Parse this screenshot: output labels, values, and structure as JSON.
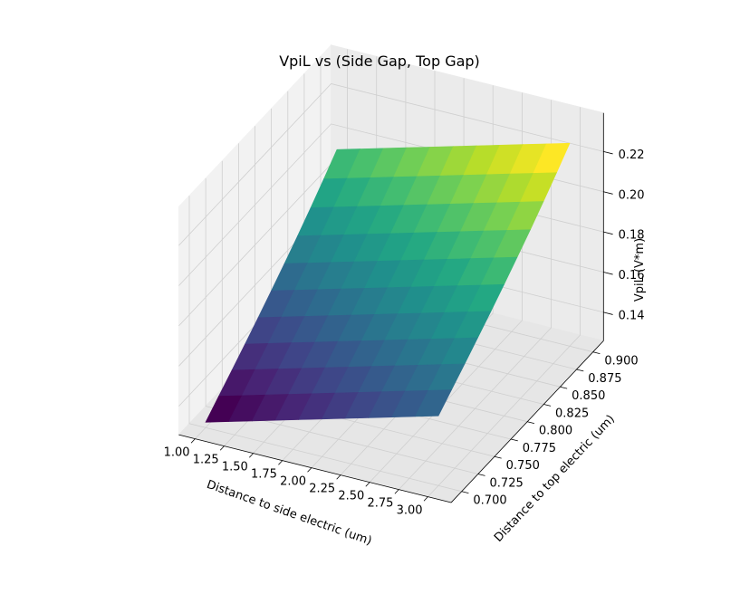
{
  "chart_data": {
    "type": "surface",
    "title": "VpiL vs (Side Gap, Top Gap)",
    "xlabel": "Distance to side electric (um)",
    "ylabel": "Distance to top electric (um)",
    "zlabel": "VpiL (V*m)",
    "x": [
      1.0,
      1.2,
      1.4,
      1.6,
      1.8,
      2.0,
      2.2,
      2.4,
      2.6,
      2.8,
      3.0
    ],
    "y": [
      0.7,
      0.72,
      0.74,
      0.76,
      0.78,
      0.8,
      0.82,
      0.84,
      0.86,
      0.88,
      0.9
    ],
    "z_by_y": [
      0.1285,
      0.1345,
      0.1405,
      0.1466,
      0.1528,
      0.1592,
      0.1658,
      0.1726,
      0.1797,
      0.1871,
      0.1948
    ],
    "z_slope_per_um_x": 0.016,
    "xlim": [
      1.0,
      3.0
    ],
    "ylim": [
      0.7,
      0.9
    ],
    "zlim": [
      0.13,
      0.235
    ],
    "xticks": [
      "1.00",
      "1.25",
      "1.50",
      "1.75",
      "2.00",
      "2.25",
      "2.50",
      "2.75",
      "3.00"
    ],
    "xtick_values": [
      1.0,
      1.25,
      1.5,
      1.75,
      2.0,
      2.25,
      2.5,
      2.75,
      3.0
    ],
    "yticks": [
      "0.700",
      "0.725",
      "0.750",
      "0.775",
      "0.800",
      "0.825",
      "0.850",
      "0.875",
      "0.900"
    ],
    "ytick_values": [
      0.7,
      0.725,
      0.75,
      0.775,
      0.8,
      0.825,
      0.85,
      0.875,
      0.9
    ],
    "zticks": [
      "0.14",
      "0.16",
      "0.18",
      "0.20",
      "0.22"
    ],
    "ztick_values": [
      0.14,
      0.16,
      0.18,
      0.2,
      0.22
    ],
    "colormap": "viridis",
    "grid": true
  }
}
